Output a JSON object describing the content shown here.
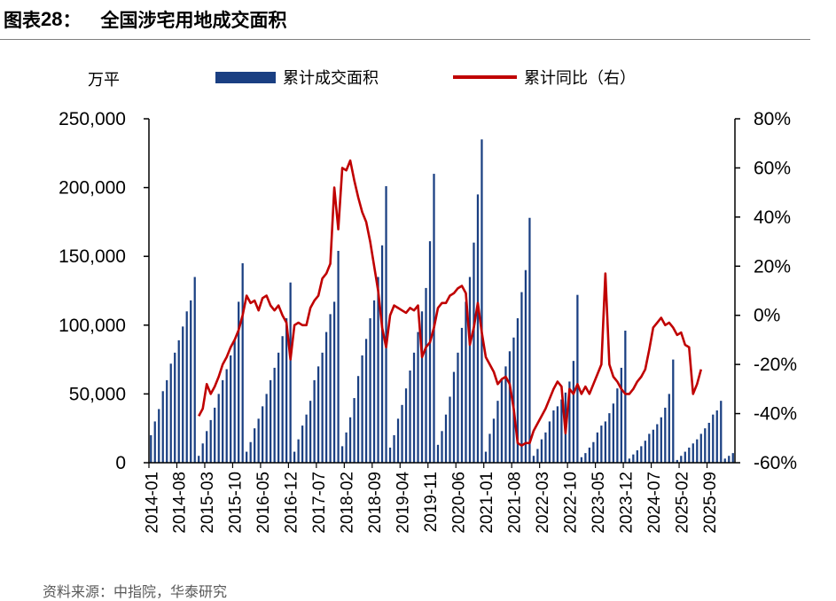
{
  "header": {
    "label_prefix": "图表",
    "label_number": "28",
    "label_colon": "：",
    "title": "全国涉宅用地成交面积"
  },
  "source": "资料来源：中指院，华泰研究",
  "chart_data": {
    "type": "bar+line",
    "title": "全国涉宅用地成交面积",
    "left_axis": {
      "unit": "万平",
      "min": 0,
      "max": 250000,
      "ticks": [
        "0",
        "50,000",
        "100,000",
        "150,000",
        "200,000",
        "250,000"
      ]
    },
    "right_axis": {
      "min": -60,
      "max": 80,
      "ticks": [
        "-60%",
        "-40%",
        "-20%",
        "0%",
        "20%",
        "40%",
        "60%",
        "80%"
      ]
    },
    "x_tick_labels": [
      "2014-01",
      "2014-08",
      "2015-03",
      "2015-10",
      "2016-05",
      "2016-12",
      "2017-07",
      "2018-02",
      "2018-09",
      "2019-04",
      "2019-11",
      "2020-06",
      "2021-01",
      "2021-08",
      "2022-03",
      "2022-10",
      "2023-05",
      "2023-12",
      "2024-07",
      "2025-02",
      "2025-09"
    ],
    "colors": {
      "bar": "#1a3f82",
      "line": "#c00000"
    },
    "series": [
      {
        "name": "累计成交面积",
        "axis": "left",
        "type": "bar",
        "start": "2014-01",
        "values": [
          20000,
          30000,
          39000,
          52000,
          60000,
          72000,
          80000,
          89000,
          99000,
          110000,
          118000,
          135000,
          5000,
          14000,
          23000,
          31000,
          40000,
          50000,
          60000,
          68000,
          78000,
          89000,
          117000,
          145000,
          8000,
          15000,
          25000,
          32000,
          41000,
          50000,
          60000,
          69000,
          80000,
          92000,
          105000,
          131000,
          8000,
          17000,
          27000,
          35000,
          45000,
          60000,
          70000,
          80000,
          95000,
          108000,
          117000,
          154000,
          12000,
          22000,
          33000,
          47000,
          63000,
          78000,
          90000,
          105000,
          118000,
          135000,
          158000,
          201000,
          11000,
          20000,
          32000,
          42000,
          54000,
          67000,
          80000,
          95000,
          110000,
          127000,
          161000,
          210000,
          13000,
          23000,
          35000,
          48000,
          66000,
          80000,
          98000,
          117000,
          135000,
          160000,
          195000,
          235000,
          8000,
          21000,
          32000,
          45000,
          60000,
          70000,
          81000,
          91000,
          105000,
          124000,
          140000,
          178000,
          5000,
          10000,
          17000,
          22000,
          30000,
          38000,
          41000,
          46000,
          51000,
          59000,
          74000,
          122000,
          4000,
          7000,
          11000,
          15000,
          22000,
          27000,
          30000,
          36000,
          43000,
          54000,
          69000,
          96000,
          3000,
          6000,
          9000,
          12000,
          16000,
          21000,
          24000,
          28000,
          33000,
          40000,
          50000,
          75000,
          2000,
          5000,
          8000,
          11000,
          14000,
          17000,
          21000,
          25000,
          29000,
          35000,
          38000,
          45000,
          3000,
          5000,
          7000
        ]
      },
      {
        "name": "累计同比（右）",
        "axis": "right",
        "type": "line",
        "start": "2015-01",
        "values": [
          -41,
          -38,
          -28,
          -32,
          -29,
          -25,
          -20,
          -17,
          -13,
          -10,
          -6,
          0,
          8,
          5,
          6,
          2,
          7,
          8,
          4,
          2,
          4,
          0,
          -3,
          -18,
          -4,
          -3,
          -4,
          -4,
          3,
          6,
          8,
          15,
          17,
          21,
          52,
          35,
          60,
          59,
          63,
          55,
          48,
          42,
          38,
          30,
          20,
          10,
          -5,
          -13,
          0,
          4,
          3,
          2,
          1,
          3,
          2,
          4,
          -17,
          -13,
          -11,
          -5,
          3,
          5,
          5,
          8,
          9,
          11,
          12,
          9,
          -12,
          -5,
          5,
          -7,
          -17,
          -20,
          -23,
          -28,
          -26,
          -25,
          -28,
          -38,
          -52,
          -53,
          -52,
          -52,
          -47,
          -44,
          -41,
          -38,
          -34,
          -30,
          -27,
          -29,
          -48,
          -30,
          -32,
          -28,
          -32,
          -29,
          -32,
          -28,
          -24,
          -20,
          17,
          -20,
          -25,
          -27,
          -30,
          -32,
          -32,
          -30,
          -27,
          -25,
          -22,
          -14,
          -5,
          -3,
          -1,
          -4,
          -3,
          -5,
          -8,
          -7,
          -12,
          -13,
          -32,
          -28,
          -22
        ]
      }
    ]
  }
}
